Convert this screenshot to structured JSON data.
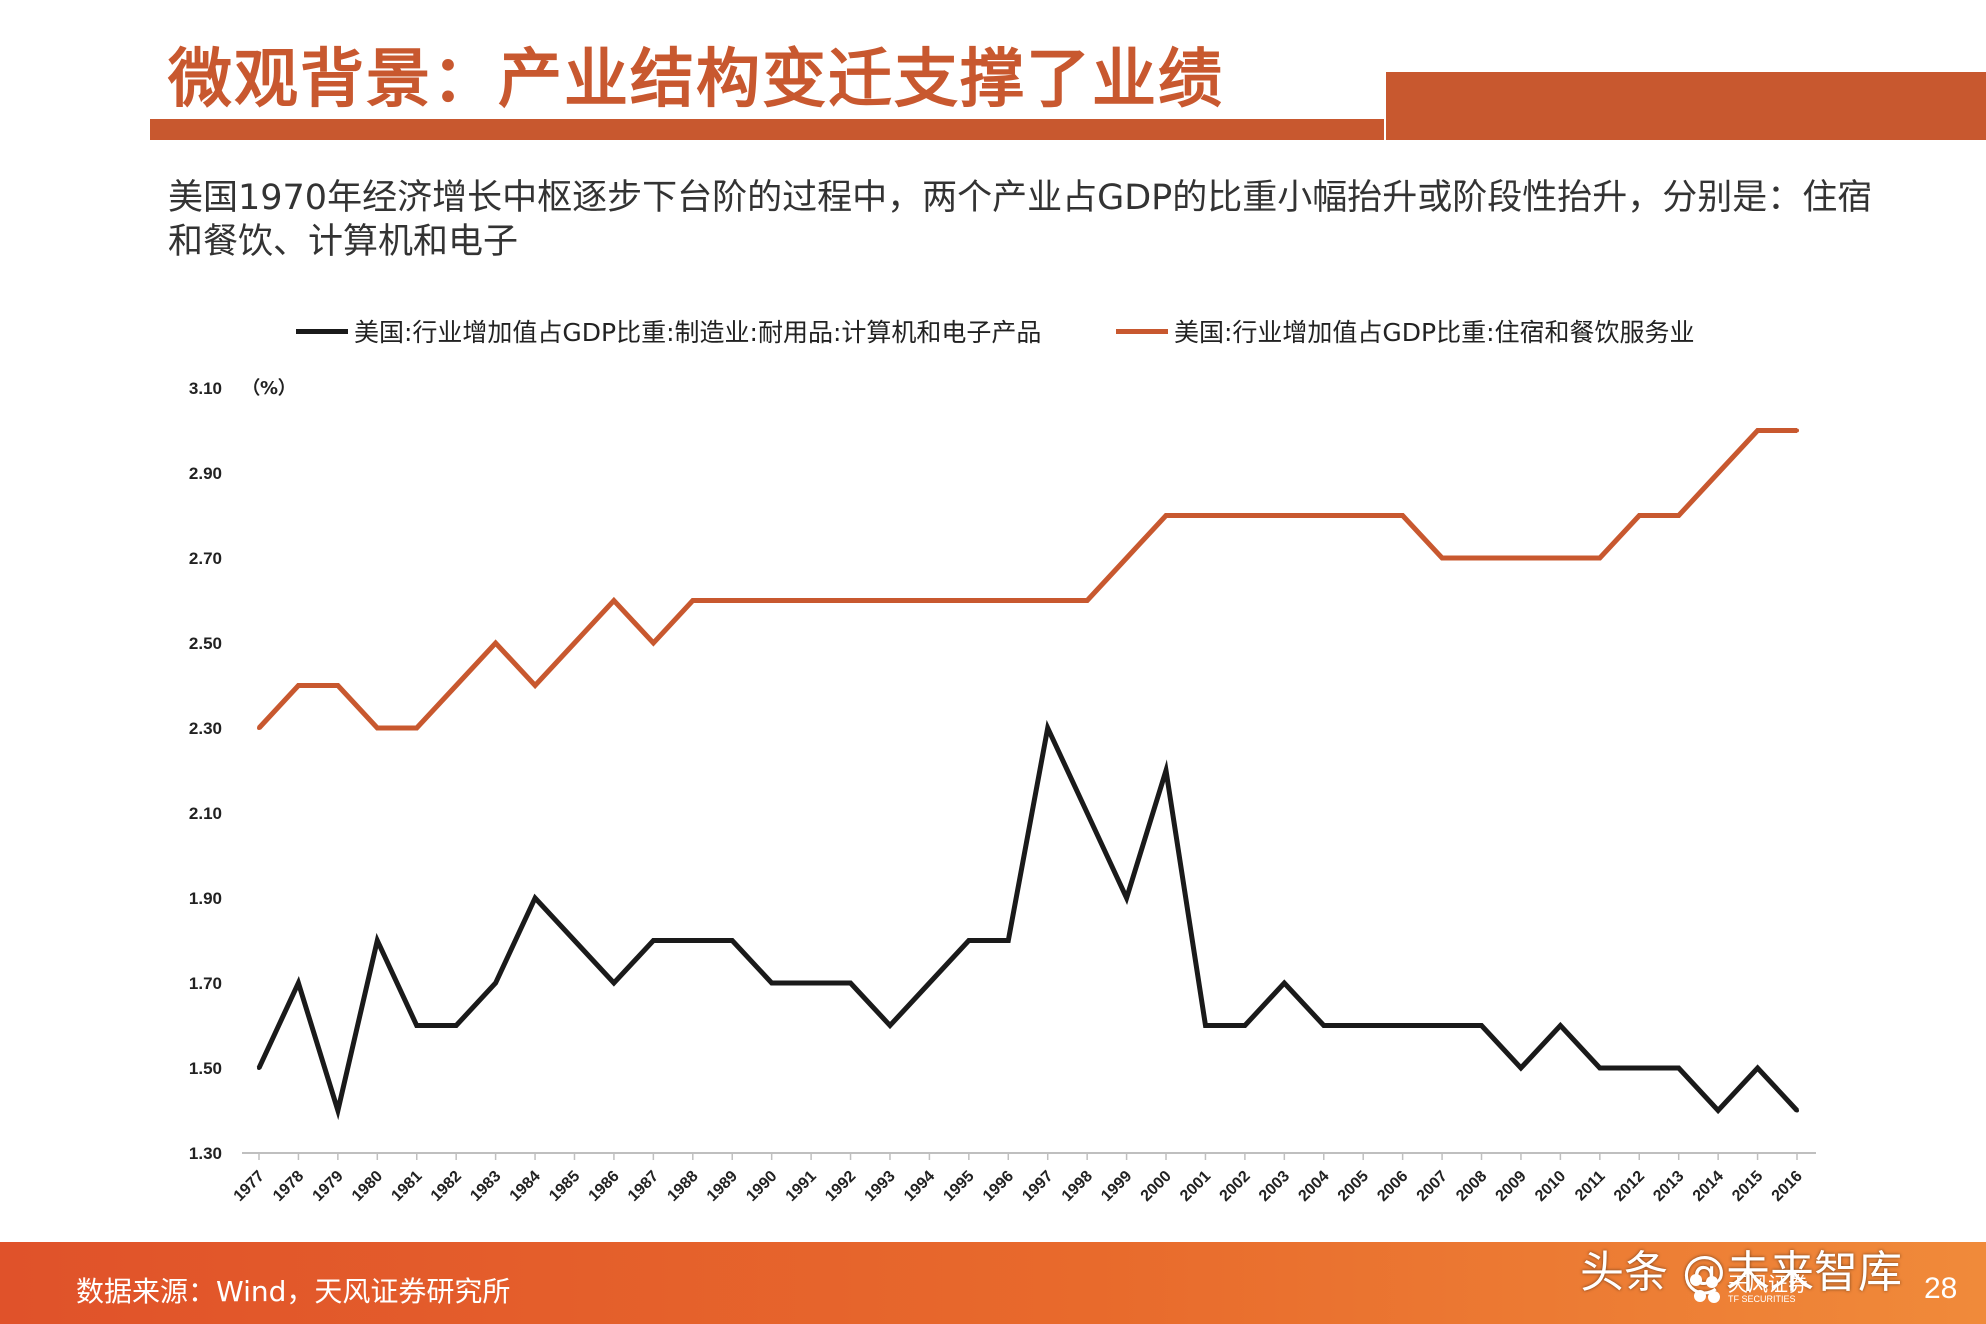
{
  "header": {
    "title": "微观背景：产业结构变迁支撑了业绩",
    "subtitle": "美国1970年经济增长中枢逐步下台阶的过程中，两个产业占GDP的比重小幅抬升或阶段性抬升，分别是：住宿和餐饮、计算机和电子"
  },
  "colors": {
    "brand": "#C8582F",
    "series_electronics": "#1A1A1A",
    "series_hospitality": "#C8582F"
  },
  "chart_data": {
    "type": "line",
    "ylabel": "（%）",
    "ylim": [
      1.3,
      3.1
    ],
    "yticks": [
      "1.30",
      "1.50",
      "1.70",
      "1.90",
      "2.10",
      "2.30",
      "2.50",
      "2.70",
      "2.90",
      "3.10"
    ],
    "grid": false,
    "legend_position": "top",
    "x": [
      "1977",
      "1978",
      "1979",
      "1980",
      "1981",
      "1982",
      "1983",
      "1984",
      "1985",
      "1986",
      "1987",
      "1988",
      "1989",
      "1990",
      "1991",
      "1992",
      "1993",
      "1994",
      "1995",
      "1996",
      "1997",
      "1998",
      "1999",
      "2000",
      "2001",
      "2002",
      "2003",
      "2004",
      "2005",
      "2006",
      "2007",
      "2008",
      "2009",
      "2010",
      "2011",
      "2012",
      "2013",
      "2014",
      "2015",
      "2016"
    ],
    "series": [
      {
        "name": "美国:行业增加值占GDP比重:制造业:耐用品:计算机和电子产品",
        "color": "#1A1A1A",
        "values": [
          1.5,
          1.7,
          1.4,
          1.8,
          1.6,
          1.6,
          1.7,
          1.9,
          1.8,
          1.7,
          1.8,
          1.8,
          1.8,
          1.7,
          1.7,
          1.7,
          1.6,
          1.7,
          1.8,
          1.8,
          2.3,
          2.1,
          1.9,
          2.2,
          1.6,
          1.6,
          1.7,
          1.6,
          1.6,
          1.6,
          1.6,
          1.6,
          1.5,
          1.6,
          1.5,
          1.5,
          1.5,
          1.4,
          1.5,
          1.4
        ]
      },
      {
        "name": "美国:行业增加值占GDP比重:住宿和餐饮服务业",
        "color": "#C8582F",
        "values": [
          2.3,
          2.4,
          2.4,
          2.3,
          2.3,
          2.4,
          2.5,
          2.4,
          2.5,
          2.6,
          2.5,
          2.6,
          2.6,
          2.6,
          2.6,
          2.6,
          2.6,
          2.6,
          2.6,
          2.6,
          2.6,
          2.6,
          2.7,
          2.8,
          2.8,
          2.8,
          2.8,
          2.8,
          2.8,
          2.8,
          2.7,
          2.7,
          2.7,
          2.7,
          2.7,
          2.8,
          2.8,
          2.9,
          3.0,
          3.0
        ]
      }
    ]
  },
  "footer": {
    "source": "数据来源：Wind，天风证券研究所",
    "watermark": "头条 @未来智库",
    "logo_cn": "天风证券",
    "logo_en": "TF SECURITIES",
    "page_number": "28"
  }
}
